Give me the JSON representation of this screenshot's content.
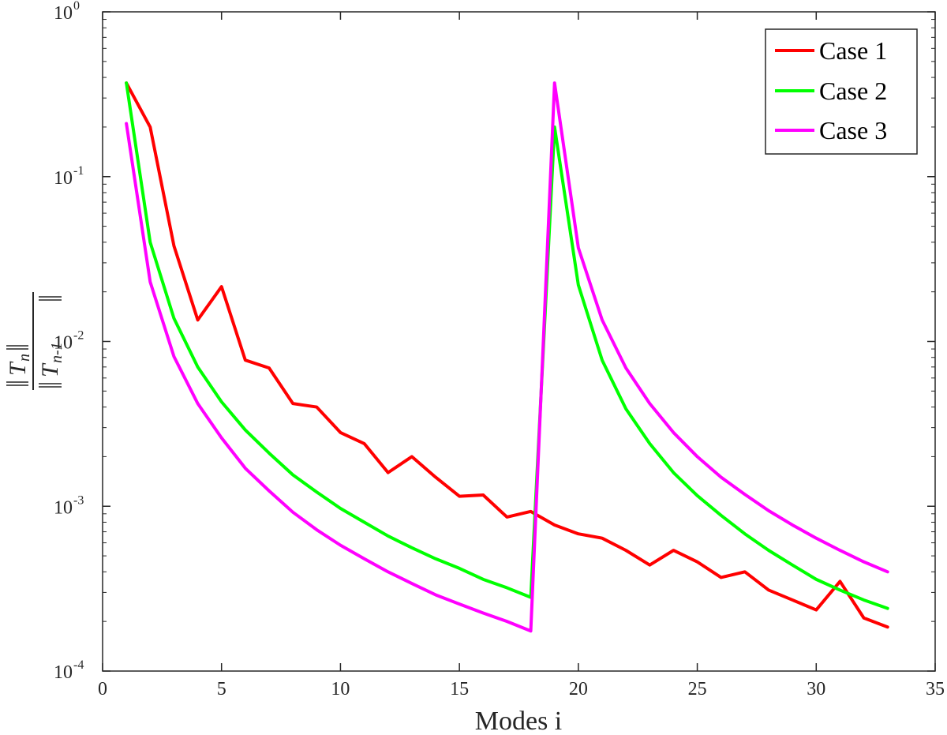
{
  "chart_data": {
    "type": "line",
    "title": "",
    "xlabel": "Modes i",
    "ylabel": {
      "numerator_var": "T",
      "numerator_sub": "n",
      "denominator_var": "T",
      "denominator_sub": "n-1"
    },
    "yscale": "log",
    "xlim": [
      0,
      35
    ],
    "ylim": [
      0.0001,
      1
    ],
    "x_ticks": [
      0,
      5,
      10,
      15,
      20,
      25,
      30,
      35
    ],
    "y_ticks": [
      {
        "value": 0.0001,
        "base": "10",
        "exp": "-4"
      },
      {
        "value": 0.001,
        "base": "10",
        "exp": "-3"
      },
      {
        "value": 0.01,
        "base": "10",
        "exp": "-2"
      },
      {
        "value": 0.1,
        "base": "10",
        "exp": "-1"
      },
      {
        "value": 1,
        "base": "10",
        "exp": "0"
      }
    ],
    "grid": false,
    "legend_position": "top-right",
    "x": [
      1,
      2,
      3,
      4,
      5,
      6,
      7,
      8,
      9,
      10,
      11,
      12,
      13,
      14,
      15,
      16,
      17,
      18,
      19,
      20,
      21,
      22,
      23,
      24,
      25,
      26,
      27,
      28,
      29,
      30,
      31,
      32,
      33
    ],
    "series": [
      {
        "name": "Case 1",
        "color": "#ff0000",
        "values": [
          0.37,
          0.2,
          0.038,
          0.0135,
          0.0215,
          0.0077,
          0.0069,
          0.0042,
          0.004,
          0.0028,
          0.0024,
          0.0016,
          0.002,
          0.0015,
          0.00115,
          0.00117,
          0.00086,
          0.00093,
          0.00077,
          0.00068,
          0.00064,
          0.00054,
          0.00044,
          0.00054,
          0.00046,
          0.00037,
          0.0004,
          0.00031,
          0.00027,
          0.000235,
          0.00035,
          0.00021,
          0.000185
        ]
      },
      {
        "name": "Case 2",
        "color": "#00ff00",
        "values": [
          0.37,
          0.04,
          0.0138,
          0.007,
          0.0043,
          0.0029,
          0.0021,
          0.00155,
          0.00122,
          0.00097,
          0.0008,
          0.00066,
          0.00056,
          0.00048,
          0.00042,
          0.00036,
          0.00032,
          0.00028,
          0.2,
          0.022,
          0.0077,
          0.0039,
          0.0024,
          0.0016,
          0.00116,
          0.00088,
          0.00068,
          0.00054,
          0.00044,
          0.00036,
          0.00031,
          0.00027,
          0.00024
        ]
      },
      {
        "name": "Case 3",
        "color": "#ff00ff",
        "values": [
          0.21,
          0.023,
          0.0081,
          0.0042,
          0.0026,
          0.0017,
          0.00124,
          0.00092,
          0.00072,
          0.00058,
          0.00048,
          0.0004,
          0.00034,
          0.00029,
          0.000255,
          0.000225,
          0.0002,
          0.000175,
          0.37,
          0.037,
          0.0135,
          0.0069,
          0.0042,
          0.0028,
          0.002,
          0.0015,
          0.00118,
          0.00094,
          0.00077,
          0.00064,
          0.00054,
          0.00046,
          0.0004
        ]
      }
    ]
  }
}
